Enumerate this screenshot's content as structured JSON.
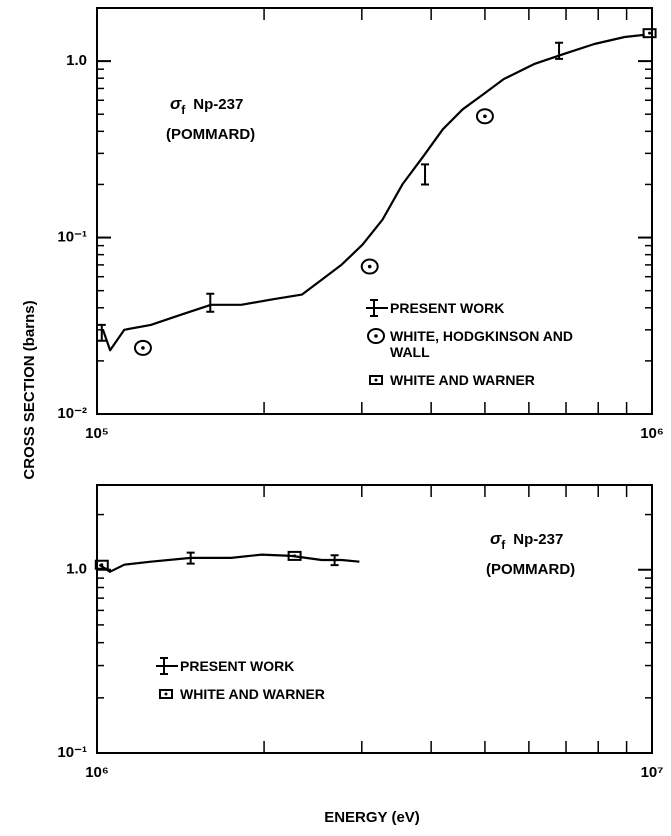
{
  "chart_data": [
    {
      "type": "line",
      "ylabel": "CROSS SECTION (barns)",
      "annotation": {
        "symbol": "σ",
        "subscript": "f",
        "label": "Np-237",
        "note": "(POMMARD)"
      },
      "xscale": "log",
      "yscale": "log",
      "legend": "lower right",
      "xlim": [
        100000,
        1000000
      ],
      "xticks": [
        {
          "value": 100000,
          "label": "10⁵"
        },
        {
          "value": 1000000,
          "label": "10⁶"
        }
      ],
      "ylim": [
        0.01,
        2.0
      ],
      "yticks": [
        {
          "value": 0.01,
          "label": "10⁻²"
        },
        {
          "value": 0.1,
          "label": "10⁻¹"
        },
        {
          "value": 1,
          "label": "1.0"
        }
      ],
      "series": [
        {
          "name": "PRESENT WORK",
          "style": "line",
          "color": "#000000",
          "x": [
            102500,
            105600,
            112000,
            125000,
            141500,
            160500,
            182000,
            206000,
            234000,
            254000,
            276000,
            301000,
            327000,
            355000,
            386000,
            420000,
            456000,
            497000,
            540000,
            613000,
            695000,
            787000,
            893000,
            970000
          ],
          "values": [
            0.03,
            0.023,
            0.03,
            0.032,
            0.0365,
            0.0416,
            0.0416,
            0.0445,
            0.0475,
            0.0577,
            0.0703,
            0.0912,
            0.1265,
            0.2,
            0.285,
            0.411,
            0.533,
            0.65,
            0.79,
            0.962,
            1.1,
            1.25,
            1.37,
            1.41
          ],
          "errorbars": {
            "x": [
              102000,
              160000,
              390000,
              680000
            ],
            "values": [
              0.029,
              0.043,
              0.23,
              1.15
            ],
            "errors": [
              0.003,
              0.005,
              0.03,
              0.12
            ]
          }
        },
        {
          "name": "WHITE, HODGKINSON AND WALL",
          "style": "circle-dot",
          "color": "#000000",
          "x": [
            121000,
            310000,
            500000
          ],
          "values": [
            0.0237,
            0.0685,
            0.487
          ]
        },
        {
          "name": "WHITE AND WARNER",
          "style": "square-dot",
          "color": "#000000",
          "x": [
            990000
          ],
          "values": [
            1.44
          ]
        }
      ]
    },
    {
      "type": "line",
      "xlabel": "ENERGY (eV)",
      "annotation": {
        "symbol": "σ",
        "subscript": "f",
        "label": "Np-237",
        "note": "(POMMARD)"
      },
      "xscale": "log",
      "yscale": "log",
      "legend": "lower left",
      "xlim": [
        1000000,
        10000000
      ],
      "xticks": [
        {
          "value": 1000000,
          "label": "10⁶"
        },
        {
          "value": 10000000,
          "label": "10⁷"
        }
      ],
      "ylim": [
        0.1,
        2.9
      ],
      "yticks": [
        {
          "value": 0.1,
          "label": "10⁻¹"
        },
        {
          "value": 1,
          "label": "1.0"
        }
      ],
      "series": [
        {
          "name": "PRESENT WORK",
          "style": "line",
          "color": "#000000",
          "x": [
            1010000,
            1055000,
            1120000,
            1250000,
            1475000,
            1745000,
            1980000,
            2240000,
            2540000,
            2760000,
            2970000
          ],
          "values": [
            1.065,
            0.975,
            1.065,
            1.106,
            1.16,
            1.16,
            1.21,
            1.19,
            1.13,
            1.13,
            1.106
          ],
          "errorbars": {
            "x": [
              1475000,
              2680000
            ],
            "values": [
              1.16,
              1.13
            ],
            "errors": [
              0.08,
              0.07
            ]
          }
        },
        {
          "name": "WHITE AND WARNER",
          "style": "square-dot",
          "color": "#000000",
          "x": [
            1020000,
            2270000
          ],
          "values": [
            1.065,
            1.19
          ]
        }
      ]
    }
  ]
}
